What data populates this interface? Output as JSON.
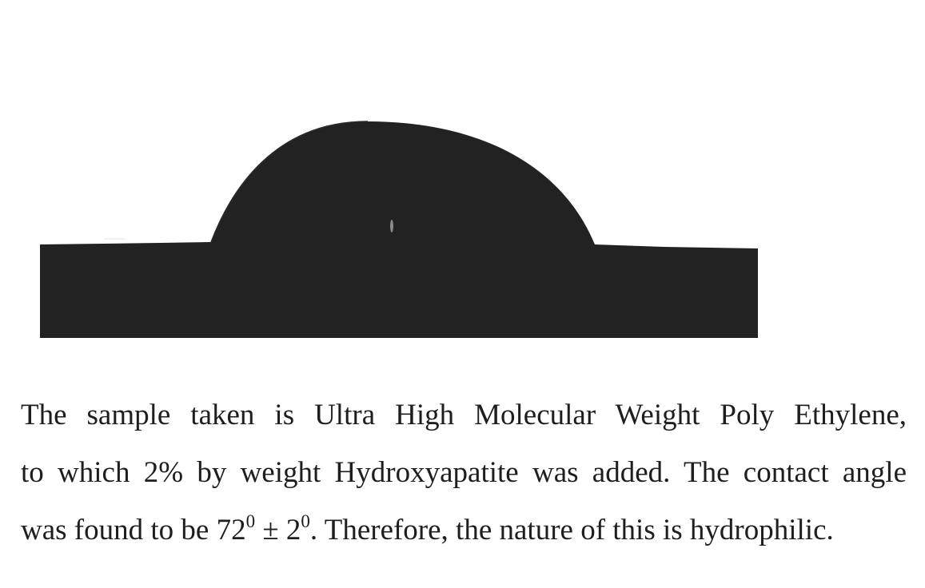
{
  "image": {
    "subject": "sessile-droplet-contact-angle-photo",
    "colors": {
      "background": "#ffffff",
      "silhouette": "#222223",
      "highlight": "#8a8a8a",
      "text": "#1e1e1e"
    }
  },
  "caption": {
    "line1": "The sample taken is Ultra High Molecular Weight Poly Ethylene,",
    "line2": "to which 2% by weight Hydroxyapatite was added. The contact angle",
    "line3_prefix": "was found to be 72",
    "degree_symbol_1": "0",
    "line3_middle": " ± 2",
    "degree_symbol_2": "0",
    "line3_suffix": ". Therefore, the nature of this is hydrophilic."
  }
}
